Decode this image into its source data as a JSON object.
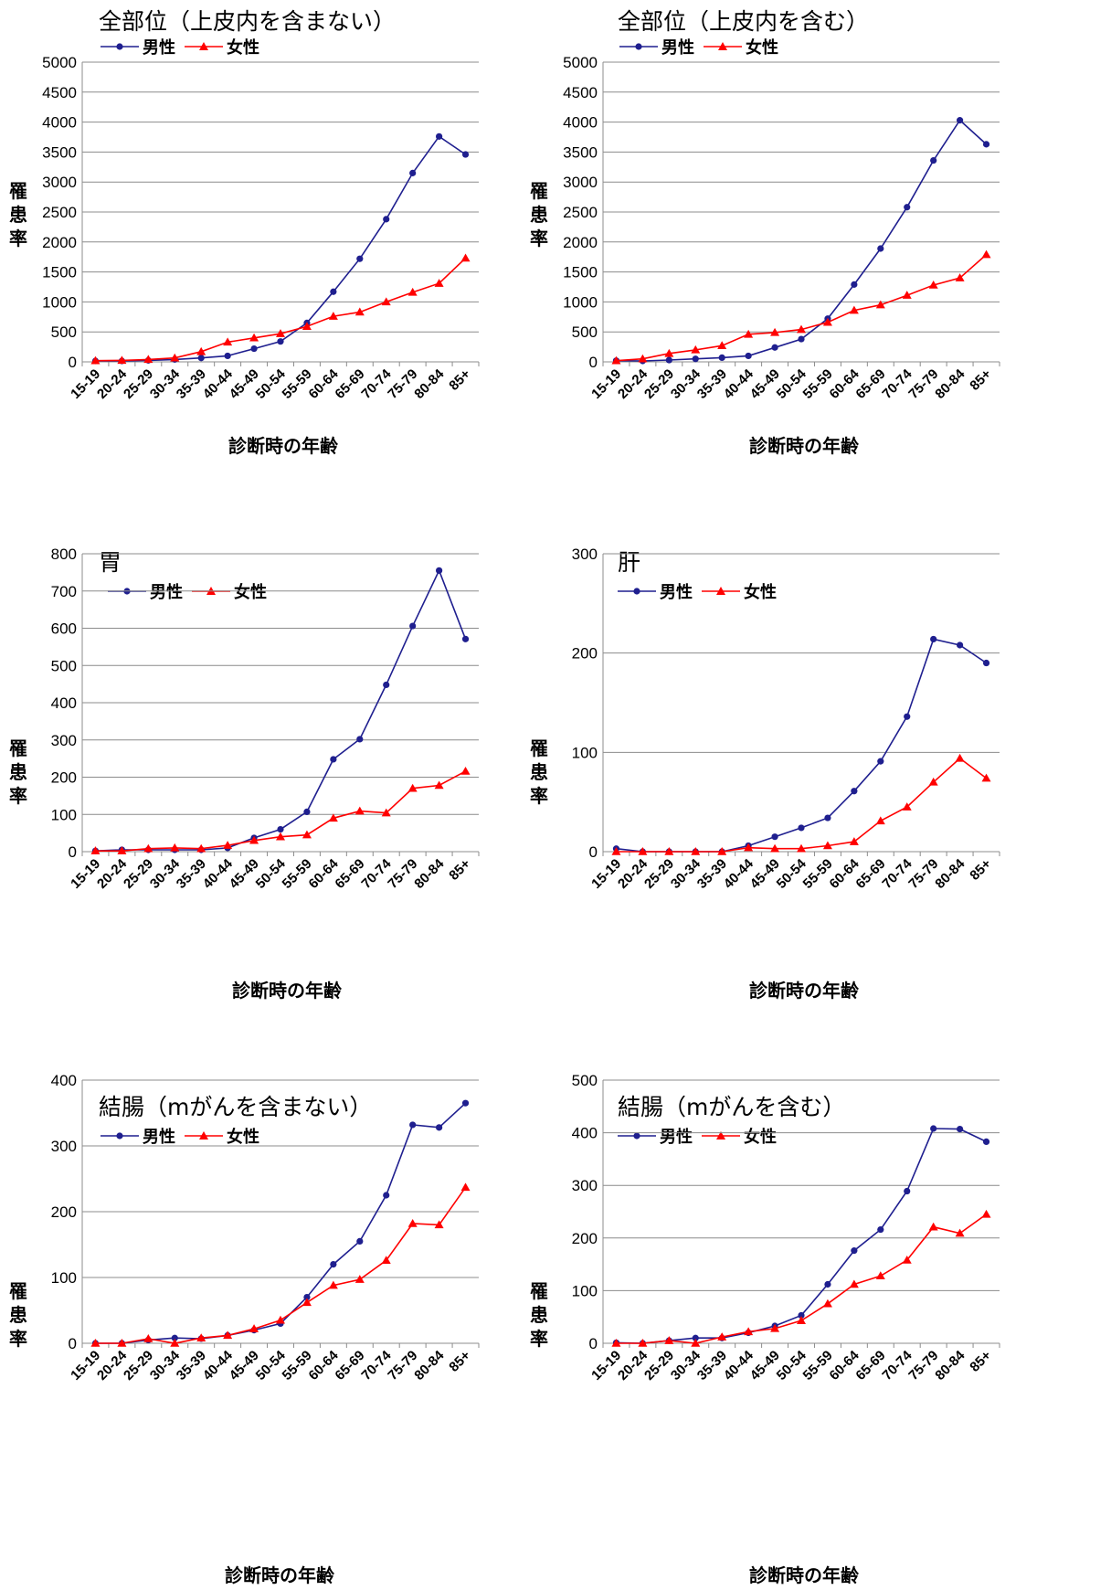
{
  "legend_labels": {
    "male": "男性",
    "female": "女性"
  },
  "colors": {
    "male": "#1f1f8f",
    "female": "#ff0000",
    "grid": "#8c8c8c"
  },
  "chart_data": [
    {
      "type": "line",
      "title": "全部位（上皮内を含まない）",
      "ylabel": "罹患率",
      "xlabel": "診断時の年齢",
      "ylim": [
        0,
        5000
      ],
      "yticks": [
        0,
        500,
        1000,
        1500,
        2000,
        2500,
        3000,
        3500,
        4000,
        4500,
        5000
      ],
      "categories": [
        "15-19",
        "20-24",
        "25-29",
        "30-34",
        "35-39",
        "40-44",
        "45-49",
        "50-54",
        "55-59",
        "60-64",
        "65-69",
        "70-74",
        "75-79",
        "80-84",
        "85+"
      ],
      "series": [
        {
          "name": "男性",
          "values": [
            15,
            15,
            25,
            40,
            65,
            100,
            220,
            340,
            650,
            1170,
            1720,
            2380,
            3150,
            3760,
            3460
          ]
        },
        {
          "name": "女性",
          "values": [
            20,
            25,
            40,
            65,
            170,
            330,
            400,
            470,
            590,
            760,
            830,
            1000,
            1160,
            1310,
            1730
          ]
        }
      ],
      "grid": true
    },
    {
      "type": "line",
      "title": "全部位（上皮内を含む）",
      "ylabel": "罹患率",
      "xlabel": "診断時の年齢",
      "ylim": [
        0,
        5000
      ],
      "yticks": [
        0,
        500,
        1000,
        1500,
        2000,
        2500,
        3000,
        3500,
        4000,
        4500,
        5000
      ],
      "categories": [
        "15-19",
        "20-24",
        "25-29",
        "30-34",
        "35-39",
        "40-44",
        "45-49",
        "50-54",
        "55-59",
        "60-64",
        "65-69",
        "70-74",
        "75-79",
        "80-84",
        "85+"
      ],
      "series": [
        {
          "name": "男性",
          "values": [
            20,
            15,
            30,
            50,
            70,
            100,
            240,
            380,
            720,
            1290,
            1890,
            2580,
            3360,
            4030,
            3630
          ]
        },
        {
          "name": "女性",
          "values": [
            20,
            50,
            140,
            200,
            270,
            460,
            490,
            540,
            660,
            860,
            950,
            1110,
            1280,
            1400,
            1790
          ]
        }
      ],
      "grid": true
    },
    {
      "type": "line",
      "title": "胃",
      "ylabel": "罹患率",
      "xlabel": "診断時の年齢",
      "ylim": [
        0,
        800
      ],
      "yticks": [
        0,
        100,
        200,
        300,
        400,
        500,
        600,
        700,
        800
      ],
      "categories": [
        "15-19",
        "20-24",
        "25-29",
        "30-34",
        "35-39",
        "40-44",
        "45-49",
        "50-54",
        "55-59",
        "60-64",
        "65-69",
        "70-74",
        "75-79",
        "80-84",
        "85+"
      ],
      "series": [
        {
          "name": "男性",
          "values": [
            2,
            5,
            5,
            5,
            5,
            10,
            37,
            60,
            107,
            248,
            302,
            448,
            606,
            755,
            571
          ]
        },
        {
          "name": "女性",
          "values": [
            2,
            2,
            8,
            10,
            8,
            17,
            30,
            40,
            45,
            90,
            109,
            104,
            170,
            178,
            216
          ]
        }
      ],
      "grid": true
    },
    {
      "type": "line",
      "title": "肝",
      "ylabel": "罹患率",
      "xlabel": "診断時の年齢",
      "ylim": [
        0,
        300
      ],
      "yticks": [
        0,
        100,
        200,
        300
      ],
      "categories": [
        "15-19",
        "20-24",
        "25-29",
        "30-34",
        "35-39",
        "40-44",
        "45-49",
        "50-54",
        "55-59",
        "60-64",
        "65-69",
        "70-74",
        "75-79",
        "80-84",
        "85+"
      ],
      "series": [
        {
          "name": "男性",
          "values": [
            3,
            0,
            0,
            0,
            0,
            6,
            15,
            24,
            34,
            61,
            91,
            136,
            214,
            208,
            190
          ]
        },
        {
          "name": "女性",
          "values": [
            0,
            0,
            0,
            0,
            0,
            4,
            3,
            3,
            6,
            10,
            31,
            45,
            70,
            94,
            74
          ]
        }
      ],
      "grid": true
    },
    {
      "type": "line",
      "title": "結腸（mがんを含まない）",
      "ylabel": "罹患率",
      "xlabel": "診断時の年齢",
      "ylim": [
        0,
        400
      ],
      "yticks": [
        0,
        100,
        200,
        300,
        400
      ],
      "categories": [
        "15-19",
        "20-24",
        "25-29",
        "30-34",
        "35-39",
        "40-44",
        "45-49",
        "50-54",
        "55-59",
        "60-64",
        "65-69",
        "70-74",
        "75-79",
        "80-84",
        "85+"
      ],
      "series": [
        {
          "name": "男性",
          "values": [
            0,
            0,
            5,
            8,
            7,
            12,
            20,
            30,
            70,
            120,
            155,
            225,
            332,
            328,
            365
          ]
        },
        {
          "name": "女性",
          "values": [
            0,
            0,
            7,
            0,
            8,
            12,
            22,
            35,
            62,
            88,
            97,
            126,
            182,
            180,
            237
          ]
        }
      ],
      "grid": true
    },
    {
      "type": "line",
      "title": "結腸（mがんを含む）",
      "ylabel": "罹患率",
      "xlabel": "診断時の年齢",
      "ylim": [
        0,
        500
      ],
      "yticks": [
        0,
        100,
        200,
        300,
        400,
        500
      ],
      "categories": [
        "15-19",
        "20-24",
        "25-29",
        "30-34",
        "35-39",
        "40-44",
        "45-49",
        "50-54",
        "55-59",
        "60-64",
        "65-69",
        "70-74",
        "75-79",
        "80-84",
        "85+"
      ],
      "series": [
        {
          "name": "男性",
          "values": [
            1,
            0,
            5,
            10,
            10,
            20,
            33,
            53,
            112,
            176,
            216,
            289,
            408,
            407,
            383
          ]
        },
        {
          "name": "女性",
          "values": [
            0,
            0,
            5,
            0,
            12,
            22,
            28,
            43,
            75,
            112,
            128,
            158,
            221,
            209,
            245
          ]
        }
      ],
      "grid": true
    }
  ]
}
